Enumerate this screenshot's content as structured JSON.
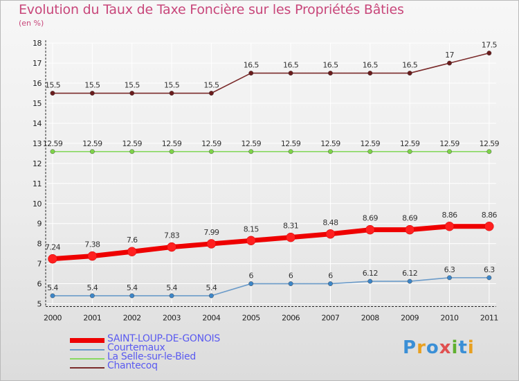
{
  "colors": {
    "title": "#c8467a",
    "axis": "#222222",
    "grid": "#ffffff",
    "legend_text": "#5a5af0"
  },
  "logo": {
    "letters": [
      "P",
      "r",
      "o",
      "x",
      "i",
      "t",
      "i"
    ],
    "colors": [
      "#3a8fd6",
      "#e8a020",
      "#3a8fd6",
      "#e05050",
      "#60b030",
      "#3a8fd6",
      "#e8a020"
    ]
  },
  "chart_data": {
    "type": "line",
    "title": "Evolution du Taux de Taxe Foncière sur les Propriétés Bâties",
    "ylabel": "(en %)",
    "xlabel": "",
    "ylim": [
      5,
      18
    ],
    "yticks": [
      5,
      6,
      7,
      8,
      9,
      10,
      11,
      12,
      13,
      14,
      15,
      16,
      17,
      18
    ],
    "categories": [
      "2000",
      "2001",
      "2002",
      "2003",
      "2004",
      "2005",
      "2006",
      "2007",
      "2008",
      "2009",
      "2010",
      "2011"
    ],
    "series": [
      {
        "name": "SAINT-LOUP-DE-GONOIS",
        "color": "#ee0000",
        "marker": "#ff2020",
        "width": 7,
        "values": [
          7.24,
          7.38,
          7.6,
          7.83,
          7.99,
          8.15,
          8.31,
          8.48,
          8.69,
          8.69,
          8.86,
          8.86
        ],
        "labels": [
          "7.24",
          "7.38",
          "7.6",
          "7.83",
          "7.99",
          "8.15",
          "8.31",
          "8.48",
          "8.69",
          "8.69",
          "8.86",
          "8.86"
        ]
      },
      {
        "name": "Courtemaux",
        "color": "#6b9bc9",
        "marker": "#3d86c8",
        "width": 1.6,
        "values": [
          5.4,
          5.4,
          5.4,
          5.4,
          5.4,
          6,
          6,
          6,
          6.12,
          6.12,
          6.3,
          6.3
        ],
        "labels": [
          "5.4",
          "5.4",
          "5.4",
          "5.4",
          "5.4",
          "6",
          "6",
          "6",
          "6.12",
          "6.12",
          "6.3",
          "6.3"
        ]
      },
      {
        "name": "La Selle-sur-le-Bied",
        "color": "#88d860",
        "marker": "#7fd34a",
        "width": 1.6,
        "values": [
          12.59,
          12.59,
          12.59,
          12.59,
          12.59,
          12.59,
          12.59,
          12.59,
          12.59,
          12.59,
          12.59,
          12.59
        ],
        "labels": [
          "12.59",
          "12.59",
          "12.59",
          "12.59",
          "12.59",
          "12.59",
          "12.59",
          "12.59",
          "12.59",
          "12.59",
          "12.59",
          "12.59"
        ]
      },
      {
        "name": "Chantecoq",
        "color": "#7a2a2a",
        "marker": "#6a1c1c",
        "width": 1.6,
        "values": [
          15.5,
          15.5,
          15.5,
          15.5,
          15.5,
          16.5,
          16.5,
          16.5,
          16.5,
          16.5,
          17,
          17.5
        ],
        "labels": [
          "15.5",
          "15.5",
          "15.5",
          "15.5",
          "15.5",
          "16.5",
          "16.5",
          "16.5",
          "16.5",
          "16.5",
          "17",
          "17.5"
        ]
      }
    ],
    "legend_position": "bottom-left",
    "grid": true
  }
}
